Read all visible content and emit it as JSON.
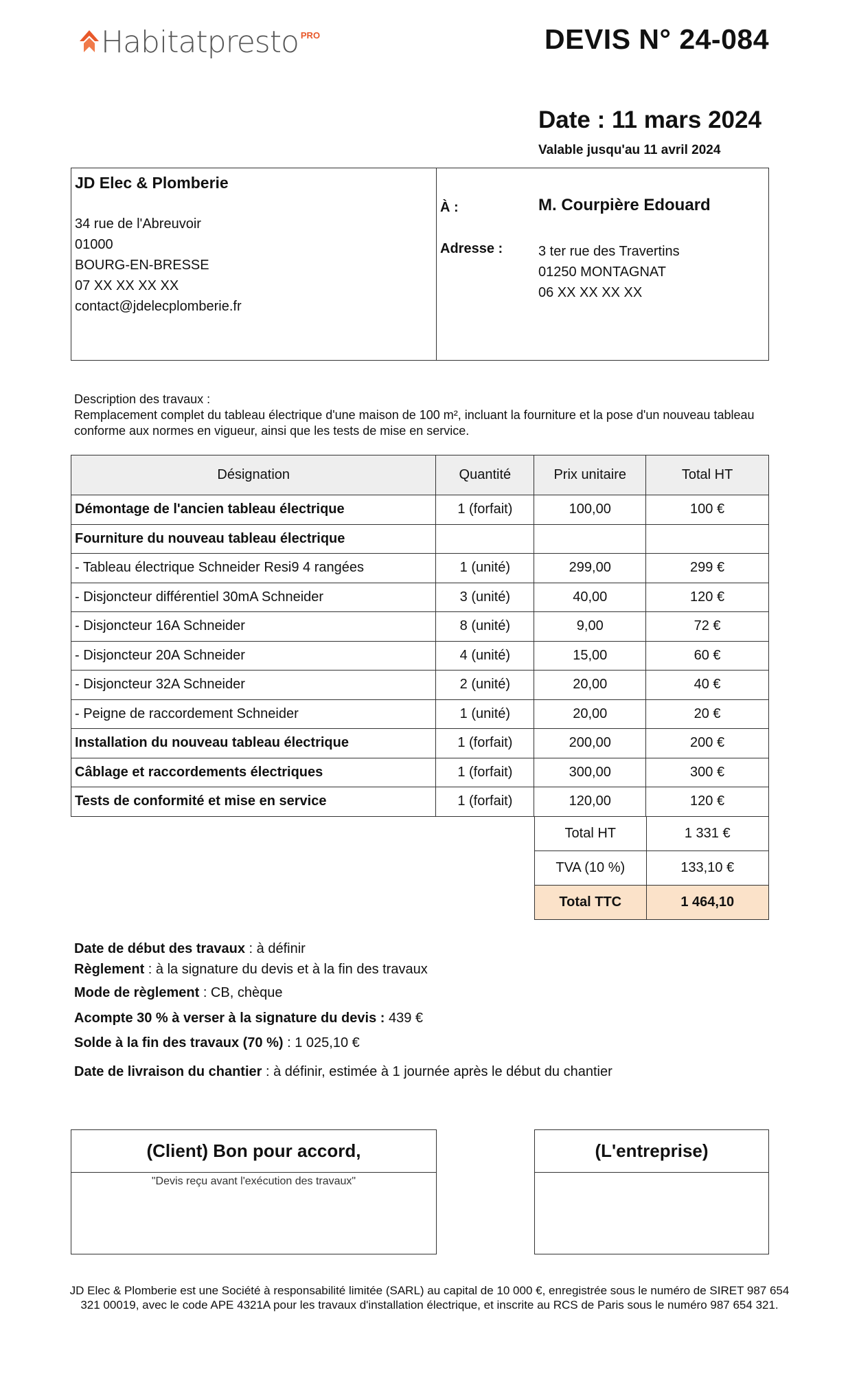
{
  "header": {
    "logo_text": "Habitatpresto",
    "logo_pro": "PRO",
    "brand_color": "#e8582a",
    "title": "DEVIS N° 24-084",
    "date": "Date : 11 mars 2024",
    "valid_until": "Valable jusqu'au 11 avril 2024"
  },
  "company": {
    "name": "JD Elec & Plomberie",
    "lines": [
      "34 rue de l'Abreuvoir",
      "01000",
      "BOURG-EN-BRESSE",
      "07 XX XX XX XX",
      "contact@jdelecplomberie.fr"
    ]
  },
  "client": {
    "to_label": "À :",
    "name": "M. Courpière Edouard",
    "address_label": "Adresse :",
    "lines": [
      "3 ter rue des Travertins",
      "01250 MONTAGNAT",
      "06 XX XX XX XX"
    ]
  },
  "description": {
    "label": "Description des travaux :",
    "text": "Remplacement complet du tableau électrique d'une maison de 100 m², incluant la fourniture et la pose d'un nouveau tableau conforme aux normes en vigueur, ainsi que les tests de mise en service."
  },
  "table": {
    "headers": [
      "Désignation",
      "Quantité",
      "Prix unitaire",
      "Total HT"
    ],
    "rows": [
      {
        "d": "Démontage de l'ancien tableau électrique",
        "q": "1 (forfait)",
        "p": "100,00",
        "t": "100 €",
        "bold": true
      },
      {
        "d": "Fourniture du nouveau tableau électrique",
        "q": "",
        "p": "",
        "t": "",
        "bold": true
      },
      {
        "d": "- Tableau électrique Schneider Resi9 4 rangées",
        "q": "1 (unité)",
        "p": "299,00",
        "t": "299 €"
      },
      {
        "d": "- Disjoncteur différentiel 30mA Schneider",
        "q": "3 (unité)",
        "p": "40,00",
        "t": "120 €"
      },
      {
        "d": "- Disjoncteur 16A Schneider",
        "q": "8 (unité)",
        "p": "9,00",
        "t": "72 €"
      },
      {
        "d": "- Disjoncteur 20A Schneider",
        "q": "4 (unité)",
        "p": "15,00",
        "t": "60 €"
      },
      {
        "d": "- Disjoncteur 32A Schneider",
        "q": "2 (unité)",
        "p": "20,00",
        "t": "40 €"
      },
      {
        "d": "- Peigne de raccordement Schneider",
        "q": "1 (unité)",
        "p": "20,00",
        "t": "20 €"
      },
      {
        "d": "Installation du nouveau tableau électrique",
        "q": "1 (forfait)",
        "p": "200,00",
        "t": "200 €",
        "bold": true
      },
      {
        "d": "Câblage et raccordements électriques",
        "q": "1 (forfait)",
        "p": "300,00",
        "t": "300 €",
        "bold": true
      },
      {
        "d": "Tests de conformité et mise en service",
        "q": "1 (forfait)",
        "p": "120,00",
        "t": "120 €",
        "bold": true
      }
    ]
  },
  "totals": {
    "ht_label": "Total HT",
    "ht": "1 331 €",
    "tva_label": "TVA (10 %)",
    "tva": "133,10 €",
    "ttc_label": "Total TTC",
    "ttc": "1 464,10",
    "ttc_color": "#fbe2c9"
  },
  "terms": [
    {
      "b": "Date de début des travaux",
      "v": " : à définir"
    },
    {
      "b": "Règlement",
      "v": " : à la signature du devis et à la fin des travaux"
    },
    {
      "b": "Mode de règlement",
      "v": " : CB, chèque"
    },
    {
      "b": "Acompte 30 % à verser à la signature du devis :",
      "v": " 439 €"
    },
    {
      "b": "Solde à la fin des travaux (70 %)",
      "v": " : 1 025,10 €"
    },
    {
      "b": "Date de livraison du chantier",
      "v": " : à définir, estimée à 1 journée après le début du chantier"
    }
  ],
  "signature": {
    "client_title": "(Client) Bon pour accord,",
    "client_note": "\"Devis reçu avant l'exécution des travaux\"",
    "company_title": "(L'entreprise)"
  },
  "footer": "JD Elec & Plomberie est une Société à responsabilité limitée (SARL) au capital de 10 000 €, enregistrée sous le numéro de SIRET 987 654 321 00019, avec le code APE 4321A pour les travaux d'installation électrique, et inscrite au RCS de Paris sous le numéro 987 654 321."
}
